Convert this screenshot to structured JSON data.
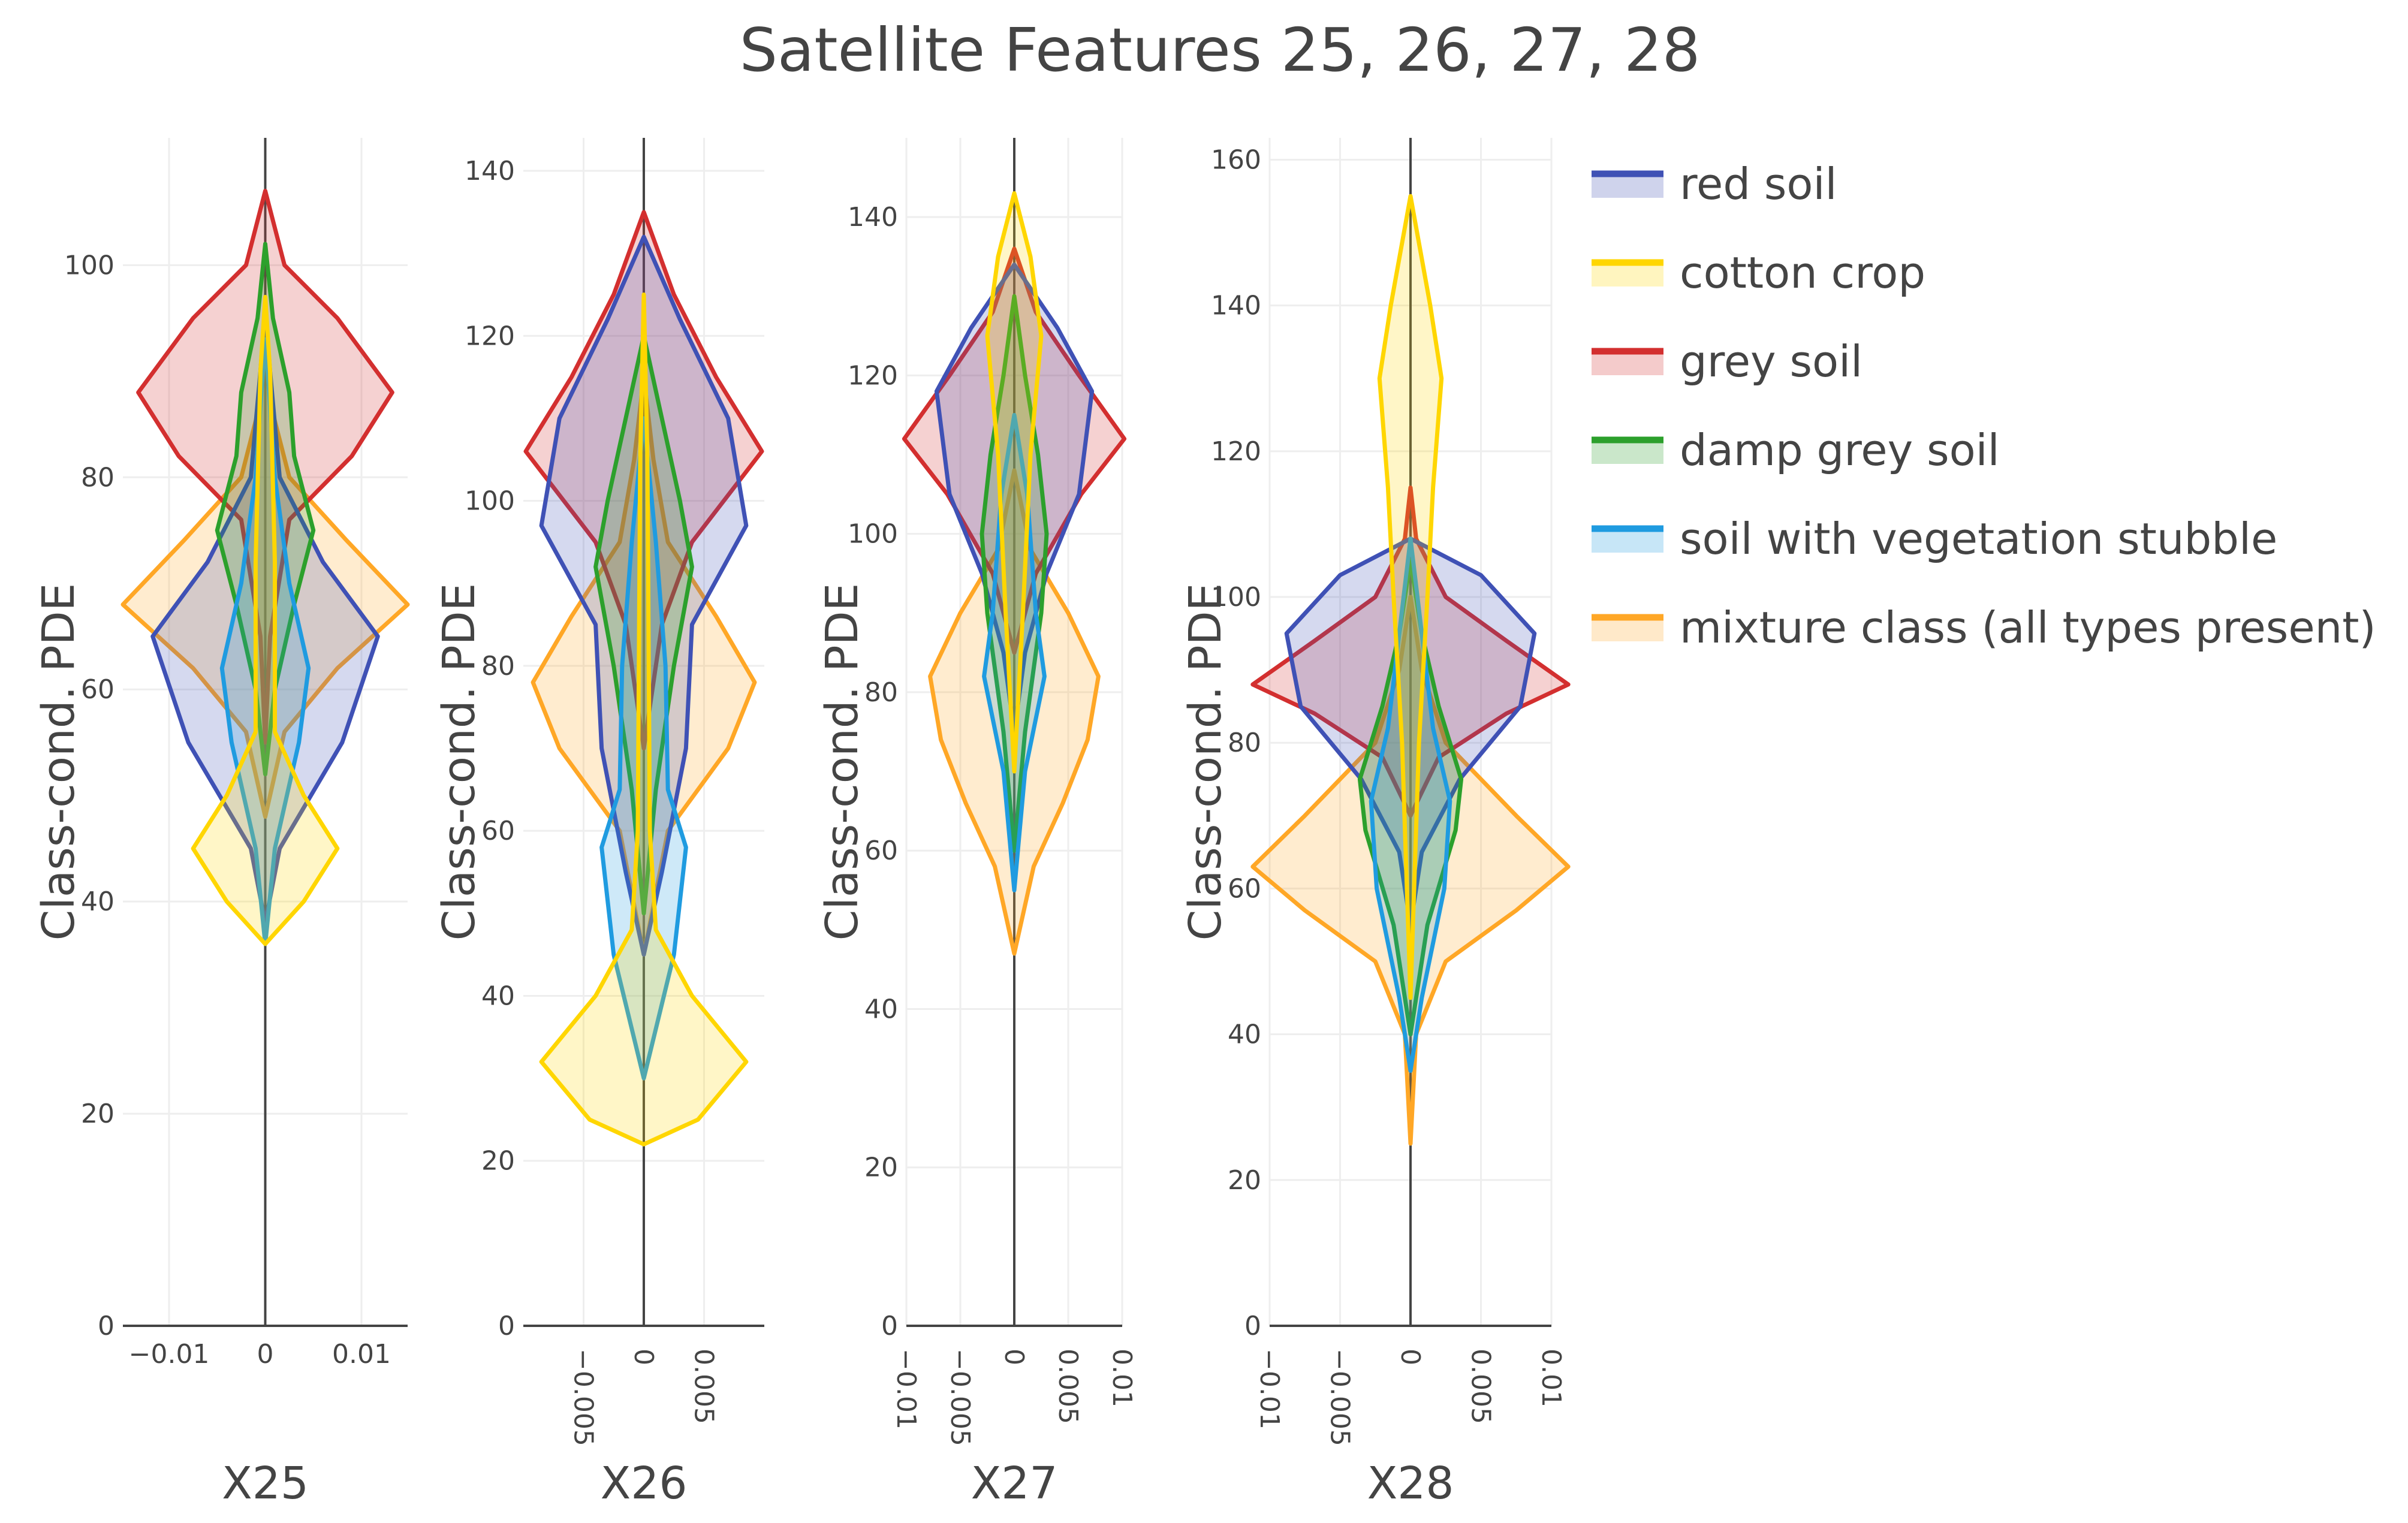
{
  "chart_data": {
    "type": "violin",
    "title": "Satellite Features 25, 26, 27, 28",
    "legend": {
      "placement": "top-right",
      "entries": [
        "red soil",
        "cotton crop",
        "grey soil",
        "damp grey soil",
        "soil with vegetation stubble",
        "mixture class (all types present)"
      ]
    },
    "series_colors": [
      "#3f51b5",
      "#ffd600",
      "#d32f2f",
      "#2ca02c",
      "#1f9be0",
      "#ffa726"
    ],
    "grid": true,
    "subplots": [
      {
        "xlabel": "X25",
        "ylabel": "Class-cond. PDE",
        "ylim": [
          0,
          112
        ],
        "yticks": [
          0,
          20,
          40,
          60,
          80,
          100
        ],
        "xlim": [
          -0.0148,
          0.0148
        ],
        "xticks": [
          -0.01,
          0,
          0.01
        ],
        "xtick_labels": [
          "−0.01",
          "0",
          "0.01"
        ],
        "xtick_rotation": 0,
        "densities": [
          {
            "name": "red soil",
            "profile": [
              [
                38,
                0
              ],
              [
                45,
                0.0015
              ],
              [
                55,
                0.008
              ],
              [
                65,
                0.0117
              ],
              [
                72,
                0.006
              ],
              [
                80,
                0.0015
              ],
              [
                90,
                0.0005
              ],
              [
                96,
                0
              ]
            ]
          },
          {
            "name": "cotton crop",
            "profile": [
              [
                36,
                0
              ],
              [
                40,
                0.004
              ],
              [
                45,
                0.0075
              ],
              [
                50,
                0.004
              ],
              [
                56,
                0.001
              ],
              [
                72,
                0.001
              ],
              [
                90,
                0.0005
              ],
              [
                97,
                0
              ]
            ]
          },
          {
            "name": "grey soil",
            "profile": [
              [
                55,
                0
              ],
              [
                65,
                0.0005
              ],
              [
                76,
                0.0025
              ],
              [
                82,
                0.009
              ],
              [
                88,
                0.0132
              ],
              [
                95,
                0.0075
              ],
              [
                100,
                0.002
              ],
              [
                107,
                0
              ]
            ]
          },
          {
            "name": "damp grey soil",
            "profile": [
              [
                52,
                0
              ],
              [
                60,
                0.001
              ],
              [
                68,
                0.003
              ],
              [
                75,
                0.005
              ],
              [
                82,
                0.003
              ],
              [
                88,
                0.0025
              ],
              [
                95,
                0.0008
              ],
              [
                102,
                0
              ]
            ]
          },
          {
            "name": "soil with vegetation stubble",
            "profile": [
              [
                36,
                0
              ],
              [
                45,
                0.001
              ],
              [
                55,
                0.0035
              ],
              [
                62,
                0.0045
              ],
              [
                70,
                0.0025
              ],
              [
                80,
                0.001
              ],
              [
                88,
                0.0004
              ],
              [
                93,
                0
              ]
            ]
          },
          {
            "name": "mixture class (all types present)",
            "profile": [
              [
                48,
                0
              ],
              [
                56,
                0.002
              ],
              [
                62,
                0.0075
              ],
              [
                68,
                0.0148
              ],
              [
                74,
                0.0085
              ],
              [
                80,
                0.0025
              ],
              [
                86,
                0.0008
              ],
              [
                92,
                0
              ]
            ]
          }
        ]
      },
      {
        "xlabel": "X26",
        "ylabel": "Class-cond. PDE",
        "ylim": [
          0,
          144
        ],
        "yticks": [
          0,
          20,
          40,
          60,
          80,
          100,
          120,
          140
        ],
        "xlim": [
          -0.01,
          0.01
        ],
        "xticks": [
          -0.005,
          0,
          0.005
        ],
        "xtick_labels": [
          "−0.005",
          "0",
          "0.005"
        ],
        "xtick_rotation": 90,
        "densities": [
          {
            "name": "red soil",
            "profile": [
              [
                45,
                0
              ],
              [
                55,
                0.0015
              ],
              [
                70,
                0.0035
              ],
              [
                85,
                0.004
              ],
              [
                97,
                0.0085
              ],
              [
                110,
                0.007
              ],
              [
                122,
                0.003
              ],
              [
                132,
                0
              ]
            ]
          },
          {
            "name": "cotton crop",
            "profile": [
              [
                22,
                0
              ],
              [
                25,
                0.0045
              ],
              [
                32,
                0.0085
              ],
              [
                40,
                0.004
              ],
              [
                48,
                0.001
              ],
              [
                60,
                0.0005
              ],
              [
                105,
                0.0003
              ],
              [
                125,
                0
              ]
            ]
          },
          {
            "name": "grey soil",
            "profile": [
              [
                70,
                0
              ],
              [
                85,
                0.0015
              ],
              [
                95,
                0.004
              ],
              [
                106,
                0.0098
              ],
              [
                115,
                0.006
              ],
              [
                125,
                0.0025
              ],
              [
                135,
                0
              ]
            ]
          },
          {
            "name": "damp grey soil",
            "profile": [
              [
                50,
                0
              ],
              [
                65,
                0.001
              ],
              [
                80,
                0.0025
              ],
              [
                92,
                0.004
              ],
              [
                100,
                0.003
              ],
              [
                110,
                0.0015
              ],
              [
                120,
                0
              ]
            ]
          },
          {
            "name": "soil with vegetation stubble",
            "profile": [
              [
                30,
                0
              ],
              [
                45,
                0.0025
              ],
              [
                58,
                0.0035
              ],
              [
                65,
                0.002
              ],
              [
                80,
                0.0018
              ],
              [
                95,
                0.001
              ],
              [
                110,
                0
              ]
            ]
          },
          {
            "name": "mixture class (all types present)",
            "profile": [
              [
                45,
                0
              ],
              [
                60,
                0.002
              ],
              [
                70,
                0.007
              ],
              [
                78,
                0.0092
              ],
              [
                86,
                0.006
              ],
              [
                95,
                0.002
              ],
              [
                105,
                0.0008
              ],
              [
                115,
                0
              ]
            ]
          }
        ]
      },
      {
        "xlabel": "X27",
        "ylabel": "Class-cond. PDE",
        "ylim": [
          0,
          150
        ],
        "yticks": [
          0,
          20,
          40,
          60,
          80,
          100,
          120,
          140
        ],
        "xlim": [
          -0.01,
          0.01
        ],
        "xticks": [
          -0.01,
          -0.005,
          0,
          0.005,
          0.01
        ],
        "xtick_labels": [
          "−0.01",
          "−0.005",
          "0",
          "0.005",
          "0.01"
        ],
        "xtick_rotation": 90,
        "densities": [
          {
            "name": "red soil",
            "profile": [
              [
                75,
                0
              ],
              [
                85,
                0.001
              ],
              [
                95,
                0.003
              ],
              [
                105,
                0.006
              ],
              [
                118,
                0.0072
              ],
              [
                126,
                0.004
              ],
              [
                134,
                0
              ]
            ]
          },
          {
            "name": "cotton crop",
            "profile": [
              [
                70,
                0
              ],
              [
                90,
                0.0008
              ],
              [
                110,
                0.0015
              ],
              [
                125,
                0.0025
              ],
              [
                135,
                0.0015
              ],
              [
                143,
                0
              ]
            ]
          },
          {
            "name": "grey soil",
            "profile": [
              [
                85,
                0
              ],
              [
                95,
                0.002
              ],
              [
                105,
                0.0062
              ],
              [
                112,
                0.0102
              ],
              [
                120,
                0.006
              ],
              [
                128,
                0.002
              ],
              [
                136,
                0
              ]
            ]
          },
          {
            "name": "damp grey soil",
            "profile": [
              [
                60,
                0
              ],
              [
                75,
                0.001
              ],
              [
                90,
                0.0025
              ],
              [
                100,
                0.003
              ],
              [
                110,
                0.0022
              ],
              [
                120,
                0.001
              ],
              [
                130,
                0
              ]
            ]
          },
          {
            "name": "soil with vegetation stubble",
            "profile": [
              [
                55,
                0
              ],
              [
                70,
                0.001
              ],
              [
                82,
                0.0028
              ],
              [
                90,
                0.002
              ],
              [
                105,
                0.0012
              ],
              [
                115,
                0
              ]
            ]
          },
          {
            "name": "mixture class (all types present)",
            "profile": [
              [
                47,
                0
              ],
              [
                58,
                0.0018
              ],
              [
                66,
                0.0045
              ],
              [
                74,
                0.0068
              ],
              [
                82,
                0.0078
              ],
              [
                90,
                0.005
              ],
              [
                98,
                0.0015
              ],
              [
                108,
                0
              ]
            ]
          }
        ]
      },
      {
        "xlabel": "X28",
        "ylabel": "Class-cond. PDE",
        "ylim": [
          0,
          163
        ],
        "yticks": [
          0,
          20,
          40,
          60,
          80,
          100,
          120,
          140,
          160
        ],
        "xlim": [
          -0.01,
          0.01
        ],
        "xticks": [
          -0.01,
          -0.005,
          0,
          0.005,
          0.01
        ],
        "xtick_labels": [
          "−0.01",
          "−0.005",
          "0",
          "0.005",
          "0.01"
        ],
        "xtick_rotation": 90,
        "densities": [
          {
            "name": "red soil",
            "profile": [
              [
                55,
                0
              ],
              [
                65,
                0.0008
              ],
              [
                75,
                0.0035
              ],
              [
                85,
                0.0078
              ],
              [
                95,
                0.0088
              ],
              [
                103,
                0.005
              ],
              [
                108,
                0
              ]
            ]
          },
          {
            "name": "cotton crop",
            "profile": [
              [
                45,
                0
              ],
              [
                80,
                0.0006
              ],
              [
                100,
                0.0012
              ],
              [
                115,
                0.0016
              ],
              [
                130,
                0.0022
              ],
              [
                140,
                0.0014
              ],
              [
                155,
                0
              ]
            ]
          },
          {
            "name": "grey soil",
            "profile": [
              [
                70,
                0
              ],
              [
                78,
                0.002
              ],
              [
                84,
                0.0068
              ],
              [
                88,
                0.0112
              ],
              [
                94,
                0.0068
              ],
              [
                100,
                0.0025
              ],
              [
                108,
                0.0004
              ],
              [
                115,
                0
              ]
            ]
          },
          {
            "name": "damp grey soil",
            "profile": [
              [
                40,
                0
              ],
              [
                55,
                0.0012
              ],
              [
                68,
                0.0032
              ],
              [
                75,
                0.0036
              ],
              [
                85,
                0.002
              ],
              [
                95,
                0.0008
              ],
              [
                105,
                0
              ]
            ]
          },
          {
            "name": "soil with vegetation stubble",
            "profile": [
              [
                35,
                0
              ],
              [
                45,
                0.0008
              ],
              [
                60,
                0.0024
              ],
              [
                72,
                0.0028
              ],
              [
                82,
                0.0016
              ],
              [
                95,
                0.0008
              ],
              [
                108,
                0
              ]
            ]
          },
          {
            "name": "mixture class (all types present)",
            "profile": [
              [
                25,
                0
              ],
              [
                40,
                0.0004
              ],
              [
                50,
                0.0025
              ],
              [
                57,
                0.0075
              ],
              [
                63,
                0.0112
              ],
              [
                70,
                0.0075
              ],
              [
                80,
                0.0025
              ],
              [
                90,
                0.0008
              ],
              [
                100,
                0
              ]
            ]
          }
        ]
      }
    ]
  }
}
